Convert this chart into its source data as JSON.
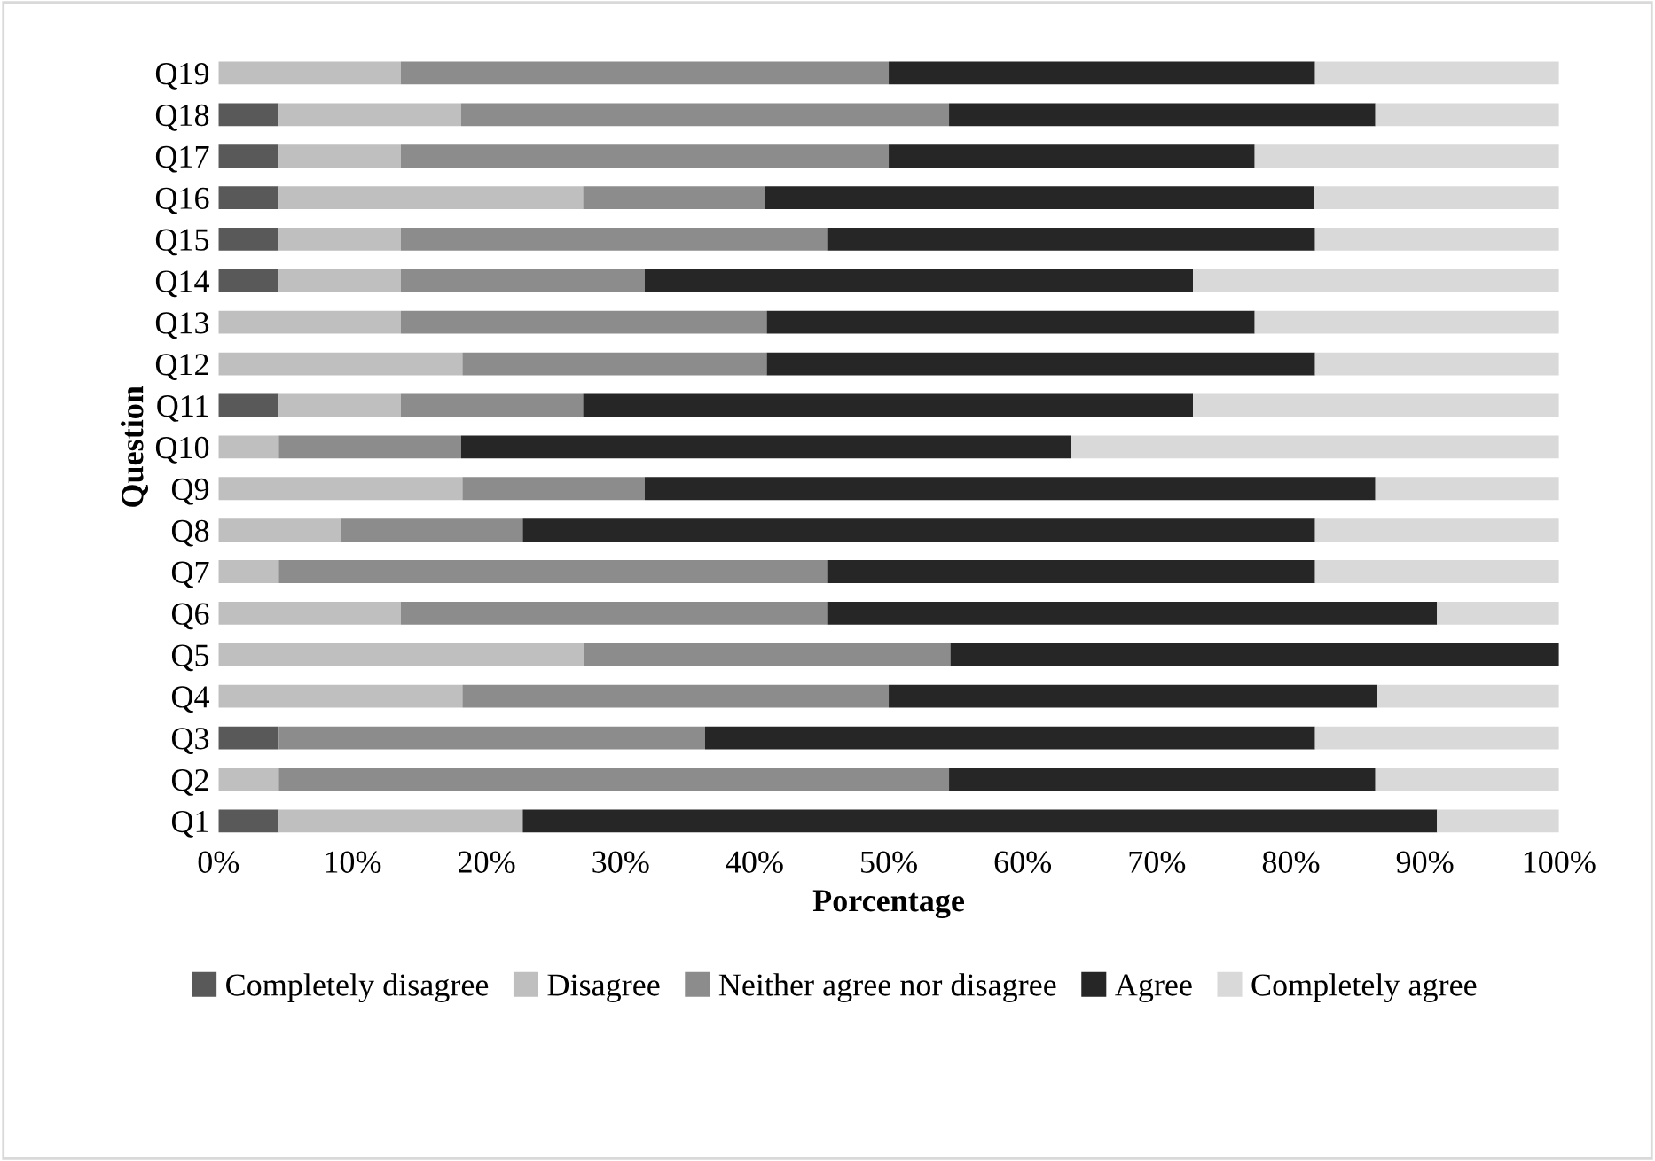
{
  "chart_data": {
    "type": "bar",
    "orientation": "horizontal",
    "stacked": true,
    "xlabel": "Porcentage",
    "ylabel": "Question",
    "categories": [
      "Q19",
      "Q18",
      "Q17",
      "Q16",
      "Q15",
      "Q14",
      "Q13",
      "Q12",
      "Q11",
      "Q10",
      "Q9",
      "Q8",
      "Q7",
      "Q6",
      "Q5",
      "Q4",
      "Q3",
      "Q2",
      "Q1"
    ],
    "series": [
      {
        "name": "Completely disagree",
        "color": "#595959",
        "values": [
          0,
          4.5,
          4.5,
          4.5,
          4.5,
          4.5,
          0,
          0,
          4.5,
          0,
          0,
          0,
          0,
          0,
          0,
          0,
          4.5,
          0,
          4.5
        ]
      },
      {
        "name": "Disagree",
        "color": "#bfbfbf",
        "values": [
          13.6,
          13.6,
          9.1,
          22.7,
          9.1,
          9.1,
          13.6,
          18.2,
          9.1,
          4.5,
          18.2,
          9.1,
          4.5,
          13.6,
          27.3,
          18.2,
          0,
          4.5,
          18.2
        ]
      },
      {
        "name": "Neither agree nor disagree",
        "color": "#8c8c8c",
        "values": [
          36.4,
          36.4,
          36.4,
          13.6,
          31.8,
          18.2,
          27.3,
          22.7,
          13.6,
          13.6,
          13.6,
          13.6,
          40.9,
          31.8,
          27.3,
          31.8,
          31.8,
          50.0,
          0
        ]
      },
      {
        "name": "Agree",
        "color": "#262626",
        "values": [
          31.8,
          31.8,
          27.3,
          40.9,
          36.4,
          40.9,
          36.4,
          40.9,
          45.5,
          45.5,
          54.5,
          59.1,
          36.4,
          45.5,
          45.4,
          36.4,
          45.5,
          31.8,
          68.2
        ]
      },
      {
        "name": "Completely agree",
        "color": "#d9d9d9",
        "values": [
          18.2,
          13.7,
          22.7,
          18.3,
          18.2,
          27.3,
          22.7,
          18.2,
          27.3,
          36.4,
          13.7,
          18.2,
          18.2,
          9.1,
          0,
          13.6,
          18.2,
          13.7,
          9.1
        ]
      }
    ],
    "xlim": [
      0,
      100
    ],
    "xticks": [
      {
        "value": 0,
        "label": "0%"
      },
      {
        "value": 10,
        "label": "10%"
      },
      {
        "value": 20,
        "label": "20%"
      },
      {
        "value": 30,
        "label": "30%"
      },
      {
        "value": 40,
        "label": "40%"
      },
      {
        "value": 50,
        "label": "50%"
      },
      {
        "value": 60,
        "label": "60%"
      },
      {
        "value": 70,
        "label": "70%"
      },
      {
        "value": 80,
        "label": "80%"
      },
      {
        "value": 90,
        "label": "90%"
      },
      {
        "value": 100,
        "label": "100%"
      }
    ],
    "legend": "bottom",
    "grid": false
  }
}
